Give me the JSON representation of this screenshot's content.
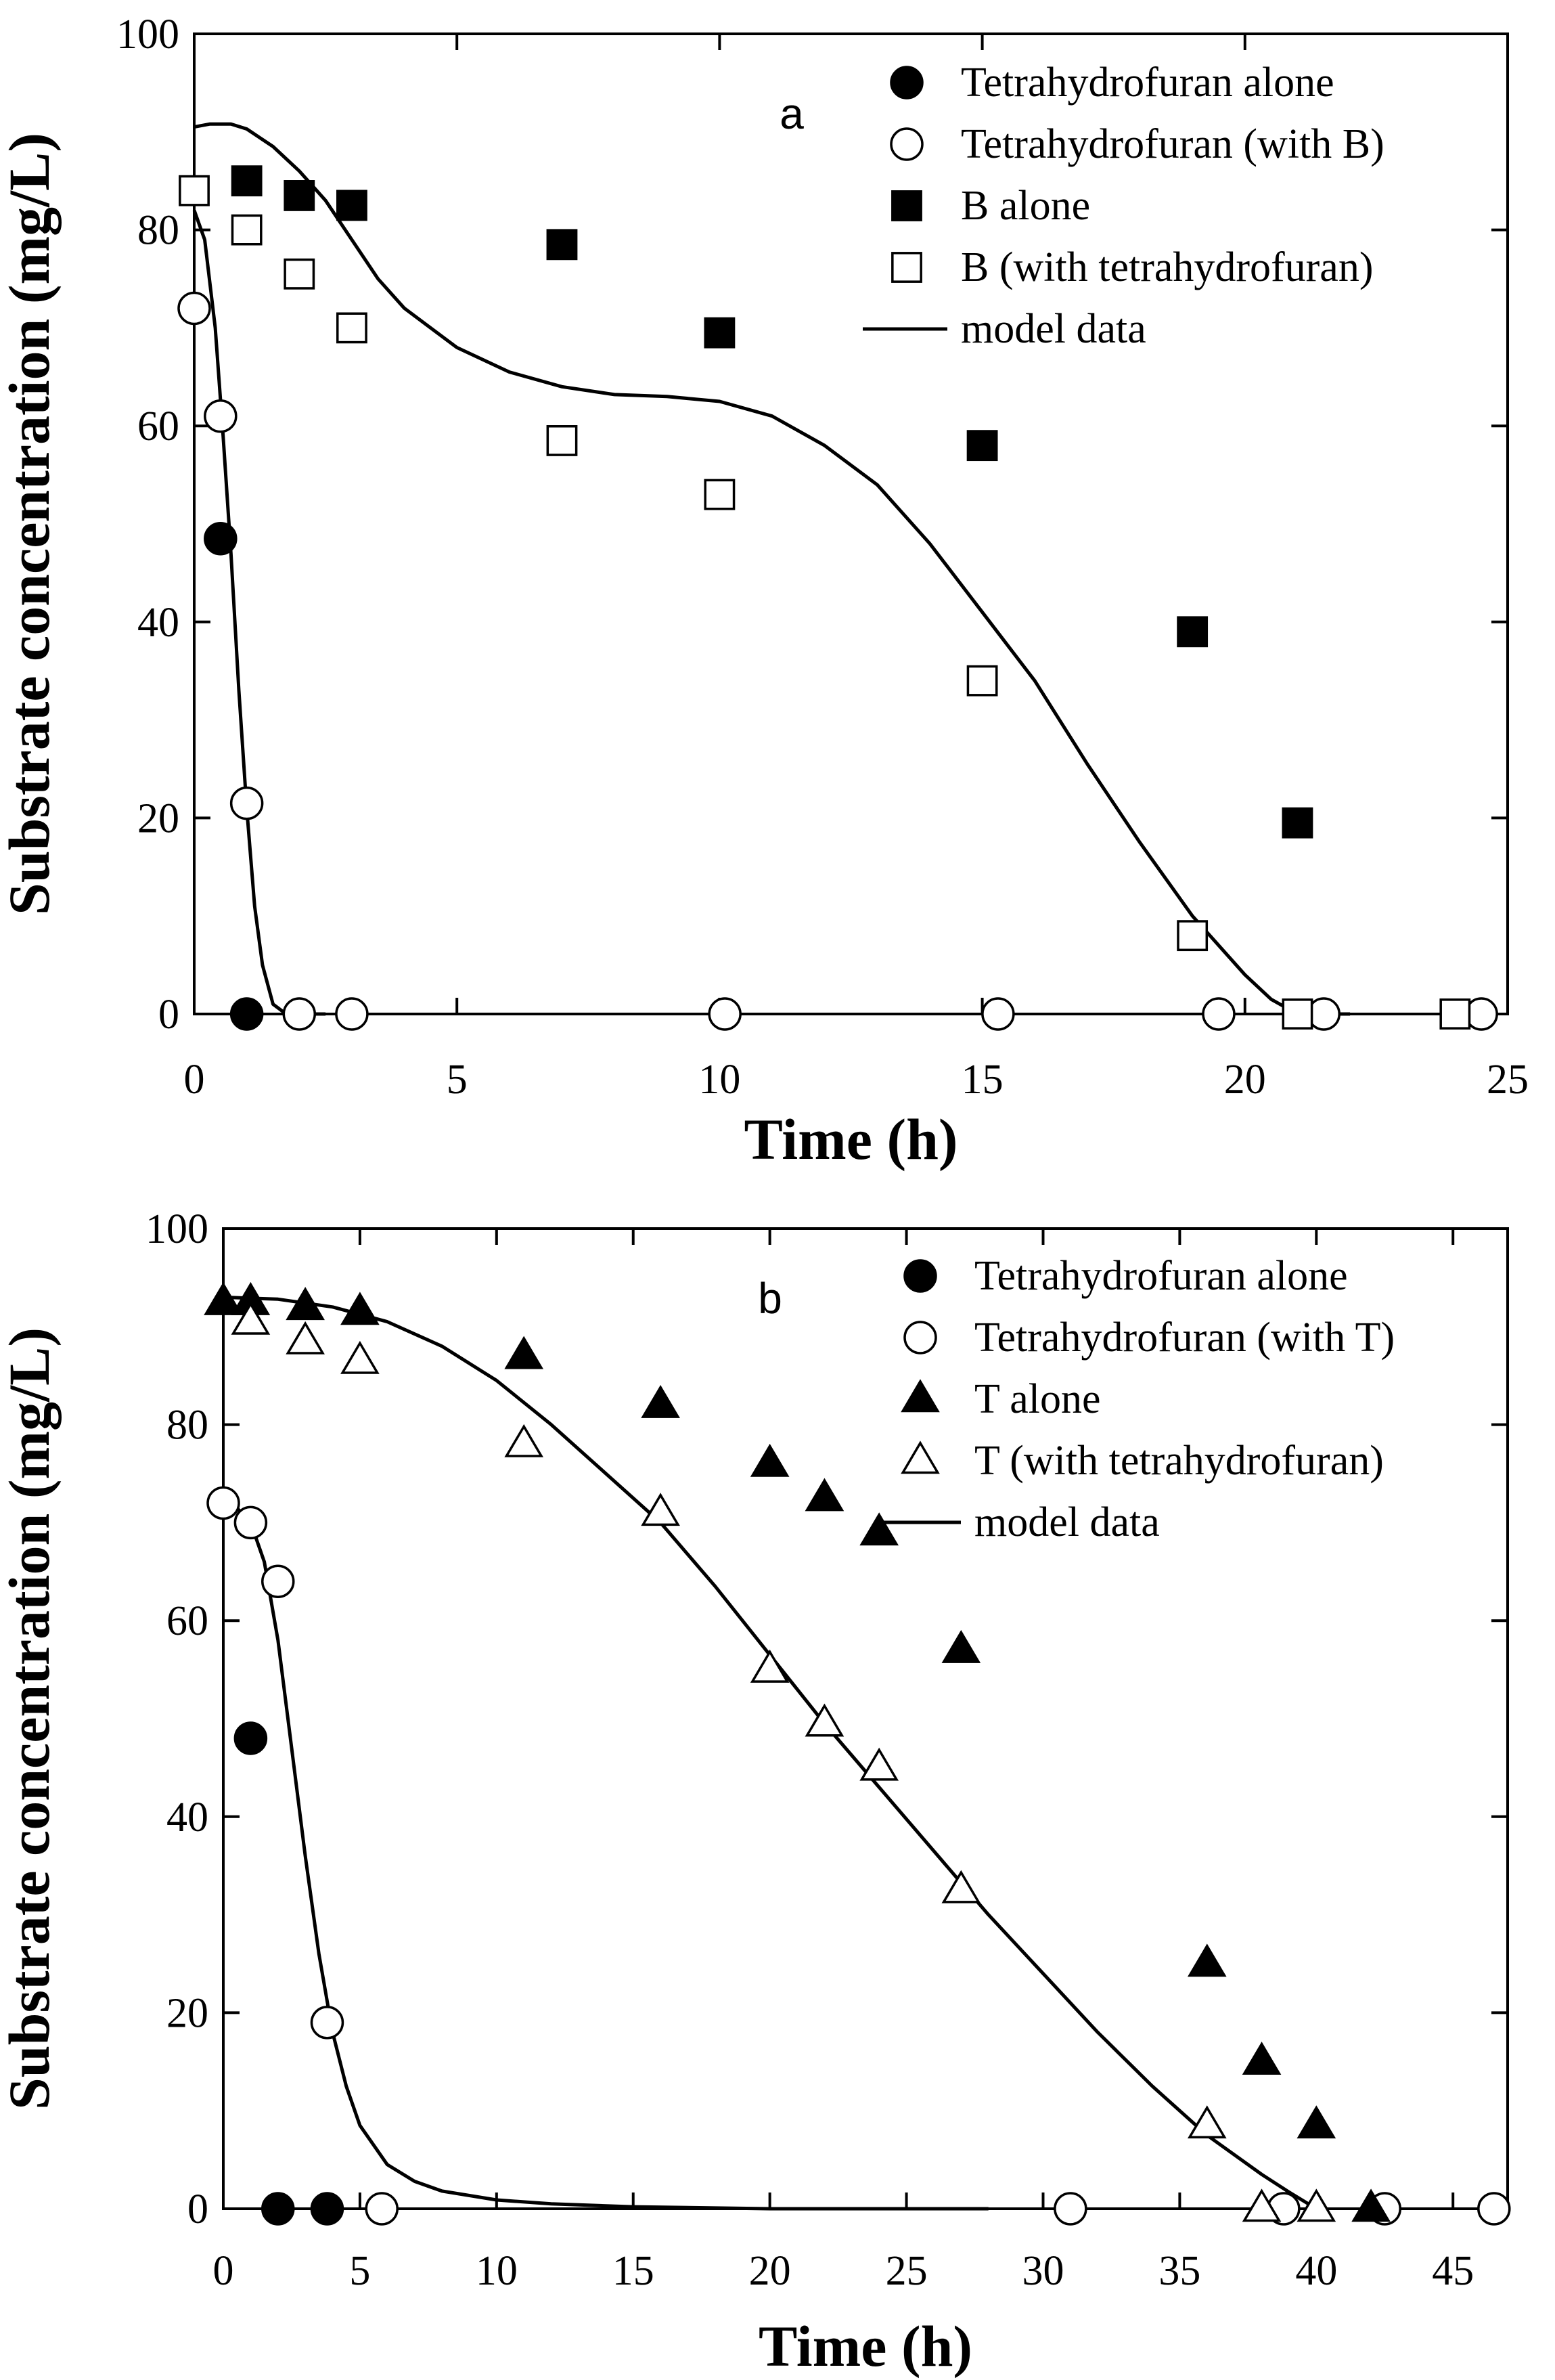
{
  "chart_data": [
    {
      "type": "scatter",
      "panel": "a",
      "xlabel": "Time (h)",
      "ylabel": "Substrate concentration (mg/L)",
      "xlim": [
        0,
        25
      ],
      "ylim": [
        0,
        100
      ],
      "xticks": [
        0,
        5,
        10,
        15,
        20,
        25
      ],
      "yticks": [
        0,
        20,
        40,
        60,
        80,
        100
      ],
      "series": [
        {
          "name": "Tetrahydrofuran alone",
          "marker": "circle",
          "filled": true,
          "points": [
            [
              0.5,
              48.5
            ],
            [
              1,
              0
            ]
          ]
        },
        {
          "name": "Tetrahydrofuran (with B)",
          "marker": "circle",
          "filled": false,
          "points": [
            [
              0,
              72
            ],
            [
              0.5,
              61
            ],
            [
              1,
              21.5
            ],
            [
              2,
              0
            ],
            [
              3,
              0
            ],
            [
              10.1,
              0
            ],
            [
              15.3,
              0
            ],
            [
              19.5,
              0
            ],
            [
              21.5,
              0
            ],
            [
              24.5,
              0
            ]
          ]
        },
        {
          "name": "B alone",
          "marker": "square",
          "filled": true,
          "points": [
            [
              1,
              85
            ],
            [
              2,
              83.5
            ],
            [
              3,
              82.5
            ],
            [
              7,
              78.5
            ],
            [
              10,
              69.5
            ],
            [
              15,
              58
            ],
            [
              19,
              39
            ],
            [
              21,
              19.5
            ]
          ]
        },
        {
          "name": "B (with tetrahydrofuran)",
          "marker": "square",
          "filled": false,
          "points": [
            [
              0,
              84
            ],
            [
              1,
              80
            ],
            [
              2,
              75.5
            ],
            [
              3,
              70
            ],
            [
              7,
              58.5
            ],
            [
              10,
              53
            ],
            [
              15,
              34
            ],
            [
              19,
              8
            ],
            [
              21,
              0
            ],
            [
              24,
              0
            ]
          ]
        },
        {
          "name": "model data",
          "marker": "line",
          "curves": [
            [
              [
                0,
                82
              ],
              [
                0.2,
                79
              ],
              [
                0.4,
                70
              ],
              [
                0.55,
                59
              ],
              [
                0.7,
                47
              ],
              [
                0.85,
                33
              ],
              [
                1,
                21
              ],
              [
                1.15,
                11
              ],
              [
                1.3,
                5
              ],
              [
                1.5,
                1
              ],
              [
                1.75,
                0
              ],
              [
                2.5,
                0
              ]
            ],
            [
              [
                0,
                90.5
              ],
              [
                0.3,
                90.8
              ],
              [
                0.7,
                90.8
              ],
              [
                1,
                90.3
              ],
              [
                1.5,
                88.5
              ],
              [
                2,
                86
              ],
              [
                2.5,
                83
              ],
              [
                3,
                79
              ],
              [
                3.5,
                75
              ],
              [
                4,
                72
              ],
              [
                5,
                68
              ],
              [
                6,
                65.5
              ],
              [
                7,
                64
              ],
              [
                8,
                63.2
              ],
              [
                9,
                63
              ],
              [
                10,
                62.5
              ],
              [
                11,
                61
              ],
              [
                12,
                58
              ],
              [
                13,
                54
              ],
              [
                14,
                48
              ],
              [
                15,
                41
              ],
              [
                16,
                34
              ],
              [
                17,
                25.5
              ],
              [
                18,
                17.5
              ],
              [
                19,
                10
              ],
              [
                20,
                4
              ],
              [
                20.5,
                1.5
              ],
              [
                21,
                0
              ],
              [
                22,
                0
              ]
            ]
          ]
        }
      ],
      "legend": [
        "Tetrahydrofuran alone",
        "Tetrahydrofuran (with B)",
        "B alone",
        "B (with tetrahydrofuran)",
        "model data"
      ]
    },
    {
      "type": "scatter",
      "panel": "b",
      "xlabel": "Time (h)",
      "ylabel": "Substrate concentration (mg/L)",
      "xlim": [
        0,
        47
      ],
      "ylim": [
        0,
        100
      ],
      "xticks": [
        0,
        5,
        10,
        15,
        20,
        25,
        30,
        35,
        40,
        45
      ],
      "yticks": [
        0,
        20,
        40,
        60,
        80,
        100
      ],
      "series": [
        {
          "name": "Tetrahydrofuran alone",
          "marker": "circle",
          "filled": true,
          "points": [
            [
              1,
              48
            ],
            [
              2,
              0
            ],
            [
              3.8,
              0
            ]
          ]
        },
        {
          "name": "Tetrahydrofuran (with T)",
          "marker": "circle",
          "filled": false,
          "points": [
            [
              0,
              72
            ],
            [
              1,
              70
            ],
            [
              2,
              64
            ],
            [
              3.8,
              19
            ],
            [
              5.8,
              0
            ],
            [
              31,
              0
            ],
            [
              38.8,
              0
            ],
            [
              42.5,
              0
            ],
            [
              46.5,
              0
            ]
          ]
        },
        {
          "name": "T alone",
          "marker": "triangle",
          "filled": true,
          "points": [
            [
              0,
              92.5
            ],
            [
              1,
              92.5
            ],
            [
              3,
              92
            ],
            [
              5,
              91.5
            ],
            [
              11,
              87
            ],
            [
              16,
              82
            ],
            [
              20,
              76
            ],
            [
              22,
              72.5
            ],
            [
              24,
              69
            ],
            [
              27,
              57
            ],
            [
              36,
              25
            ],
            [
              38,
              15
            ],
            [
              40,
              8.5
            ],
            [
              42,
              0
            ]
          ]
        },
        {
          "name": "T (with tetrahydrofuran)",
          "marker": "triangle",
          "filled": false,
          "points": [
            [
              1,
              90.5
            ],
            [
              3,
              88.5
            ],
            [
              5,
              86.5
            ],
            [
              11,
              78
            ],
            [
              16,
              71
            ],
            [
              20,
              55
            ],
            [
              22,
              49.5
            ],
            [
              24,
              45
            ],
            [
              27,
              32.5
            ],
            [
              36,
              8.5
            ],
            [
              38,
              0
            ],
            [
              40,
              0
            ]
          ]
        },
        {
          "name": "model data",
          "marker": "line",
          "curves": [
            [
              [
                0,
                72
              ],
              [
                0.5,
                71.5
              ],
              [
                1,
                70
              ],
              [
                1.5,
                66
              ],
              [
                2,
                58
              ],
              [
                2.5,
                47
              ],
              [
                3,
                36
              ],
              [
                3.5,
                26
              ],
              [
                4,
                18
              ],
              [
                4.5,
                12.5
              ],
              [
                5,
                8.5
              ],
              [
                6,
                4.5
              ],
              [
                7,
                2.8
              ],
              [
                8,
                1.8
              ],
              [
                10,
                0.9
              ],
              [
                12,
                0.5
              ],
              [
                15,
                0.2
              ],
              [
                20,
                0
              ],
              [
                28,
                0
              ]
            ],
            [
              [
                0,
                93
              ],
              [
                2,
                92.8
              ],
              [
                4,
                92
              ],
              [
                6,
                90.5
              ],
              [
                8,
                88
              ],
              [
                10,
                84.5
              ],
              [
                12,
                80
              ],
              [
                14,
                75
              ],
              [
                16,
                70
              ],
              [
                18,
                63.5
              ],
              [
                20,
                56.5
              ],
              [
                22,
                49.5
              ],
              [
                24,
                43
              ],
              [
                26,
                36.5
              ],
              [
                28,
                30
              ],
              [
                30,
                24
              ],
              [
                32,
                18
              ],
              [
                34,
                12.5
              ],
              [
                36,
                7.5
              ],
              [
                38,
                3.5
              ],
              [
                39,
                1.7
              ],
              [
                40,
                0
              ]
            ]
          ]
        }
      ],
      "legend": [
        "Tetrahydrofuran alone",
        "Tetrahydrofuran (with T)",
        "T alone",
        "T (with tetrahydrofuran)",
        "model data"
      ]
    }
  ]
}
